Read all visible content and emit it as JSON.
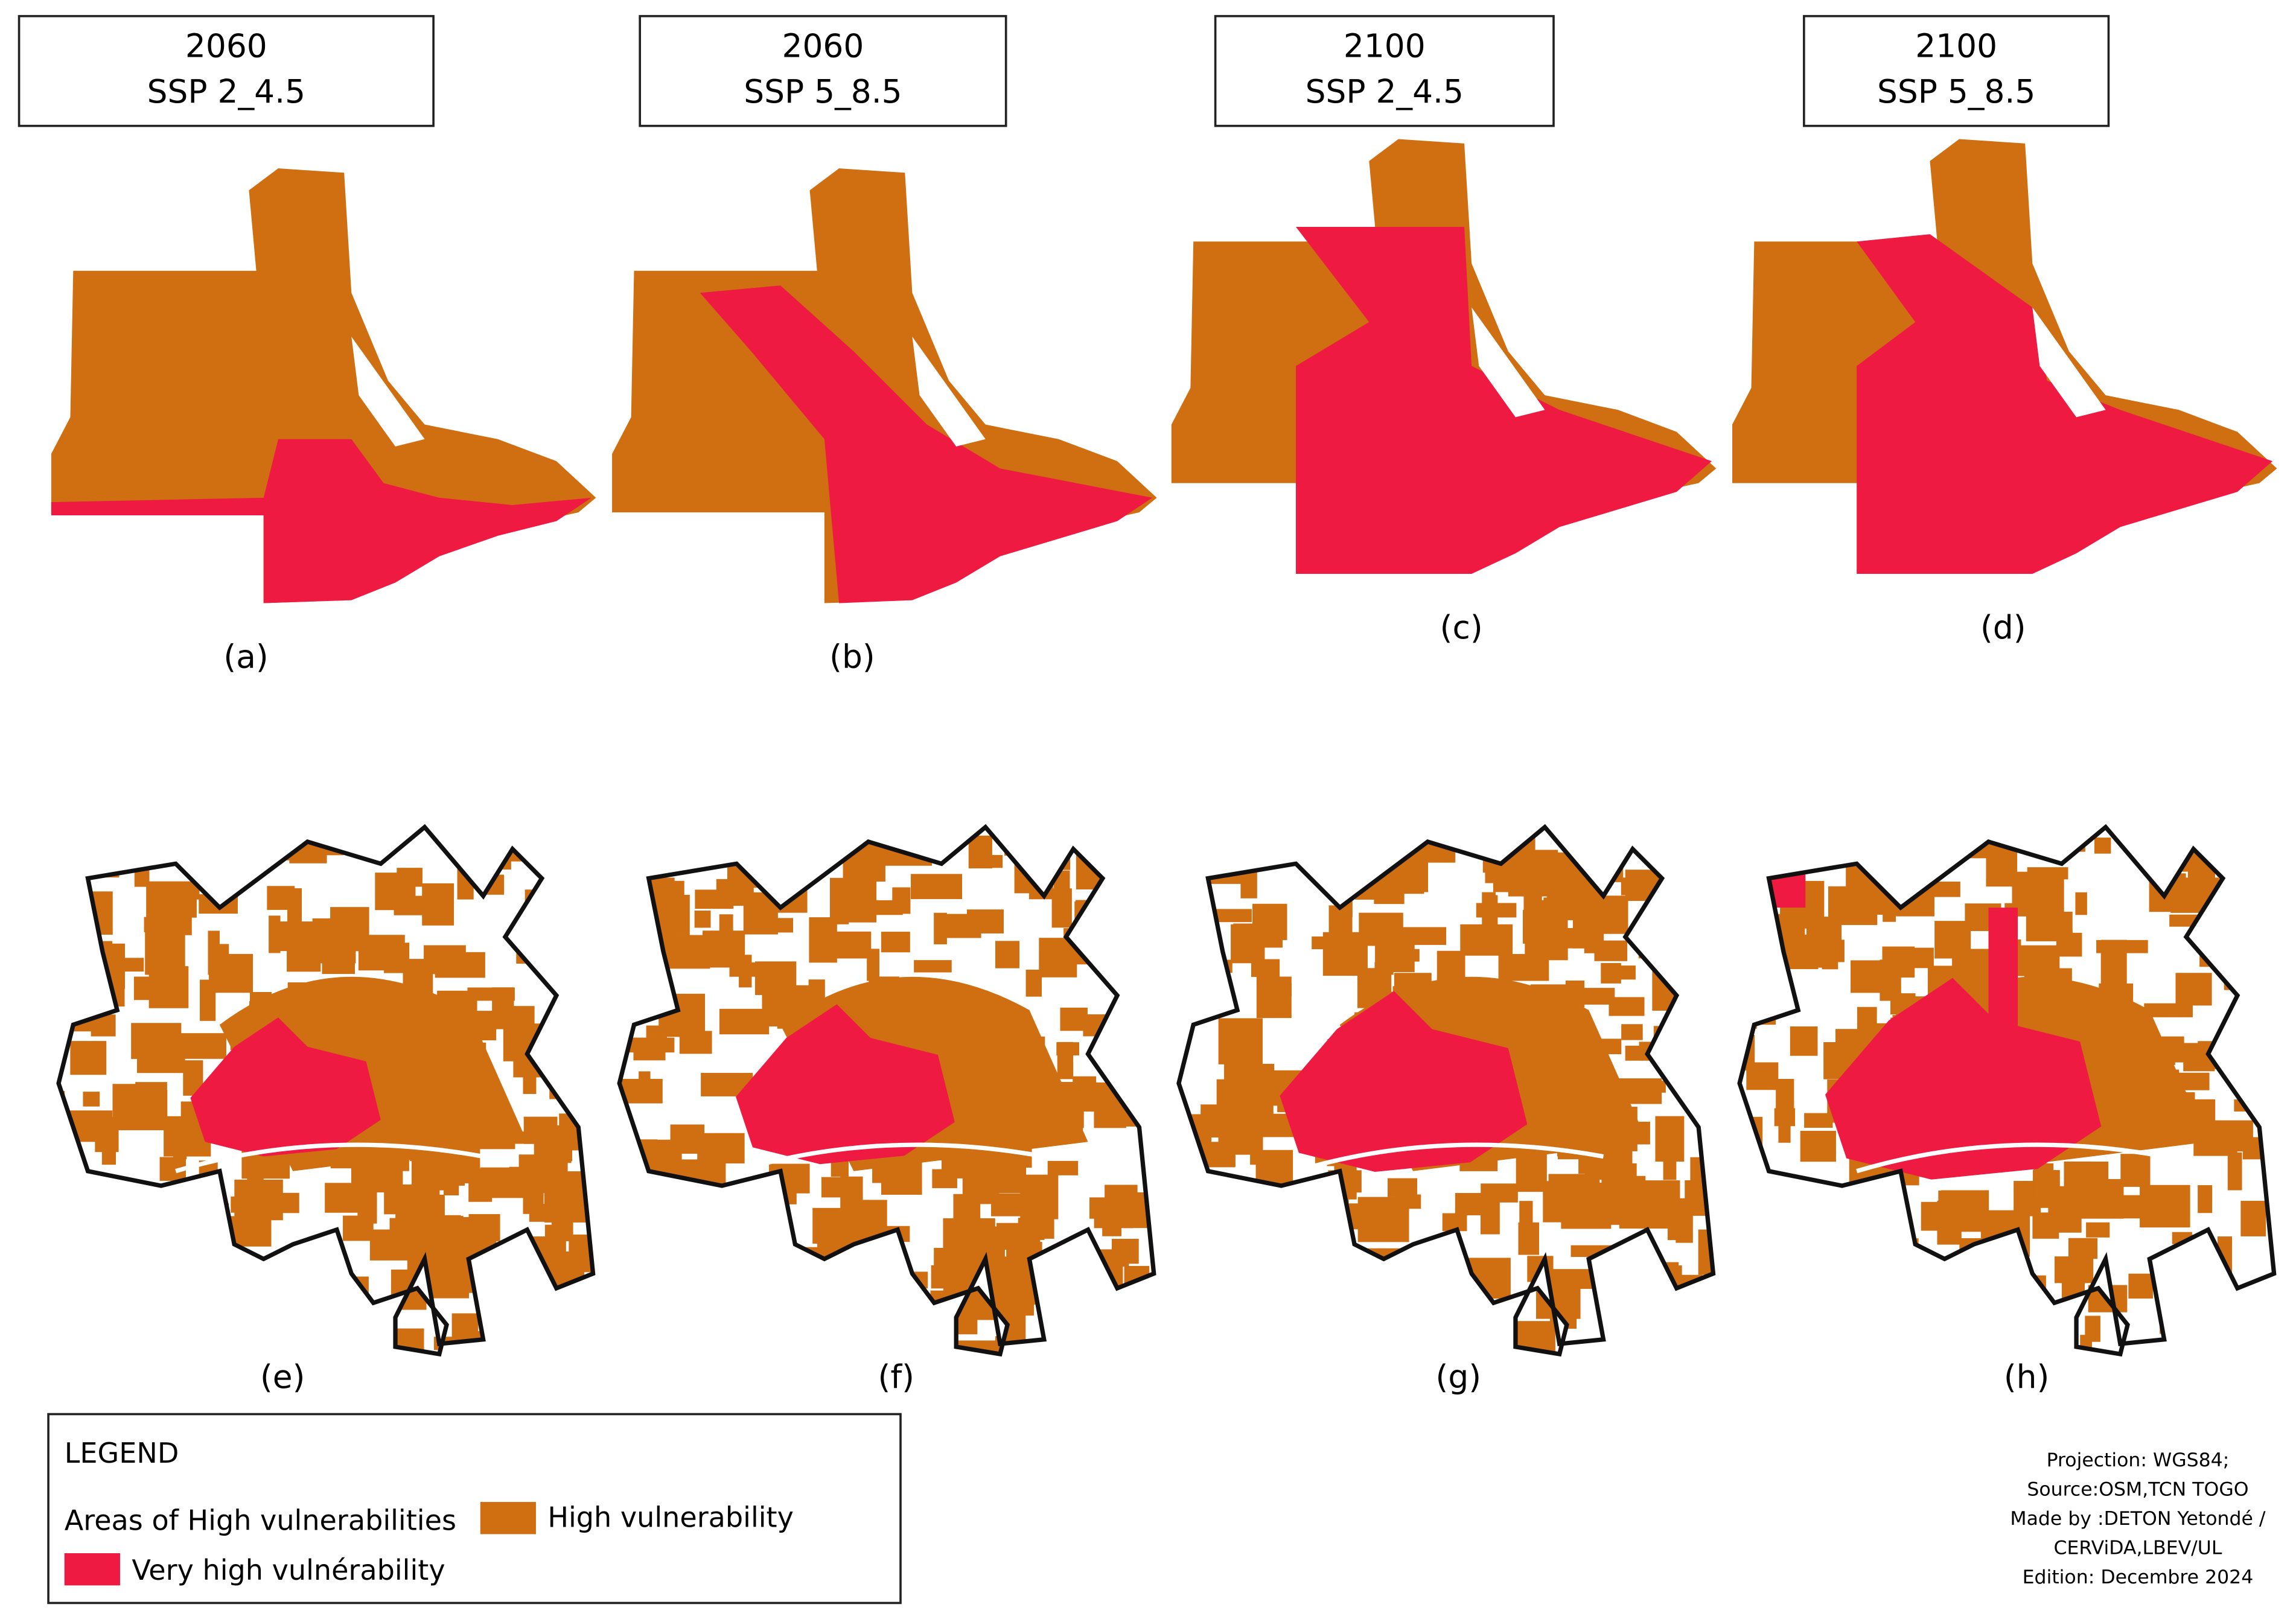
{
  "panels": [
    {
      "year": "2060",
      "scenario": "SSP 2_4.5",
      "label": "(a)"
    },
    {
      "year": "2060",
      "scenario": "SSP 5_8.5",
      "label": "(b)"
    },
    {
      "year": "2100",
      "scenario": "SSP 2_4.5",
      "label": "(c)"
    },
    {
      "year": "2100",
      "scenario": "SSP 5_8.5",
      "label": "(d)"
    }
  ],
  "bottom_labels": [
    "(e)",
    "(f)",
    "(g)",
    "(h)"
  ],
  "legend": {
    "title": "LEGEND",
    "group": "Areas of High vulnerabilities",
    "items": [
      {
        "label": "High vulnerability",
        "color": "#cf6f12"
      },
      {
        "label": "Very high vulnérability",
        "color": "#ef1a42"
      }
    ]
  },
  "credits": [
    "Projection: WGS84;",
    "Source:OSM,TCN TOGO",
    "Made by :DETON Yetondé /",
    "CERViDA,LBEV/UL",
    "Edition: Decembre 2024"
  ]
}
